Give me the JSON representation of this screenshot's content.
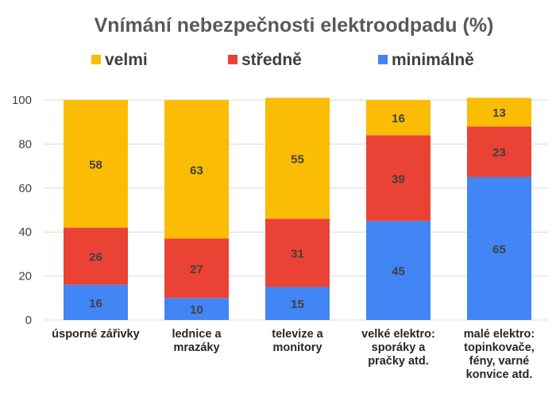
{
  "chart_data": {
    "type": "bar",
    "stacked": true,
    "title": "Vnímání nebezpečnosti elektroodpadu (%)",
    "xlabel": "",
    "ylabel": "",
    "ylim": [
      0,
      100
    ],
    "yticks": [
      "0",
      "20",
      "40",
      "60",
      "80",
      "100"
    ],
    "grid": true,
    "legend_position": "top",
    "categories": [
      [
        "úsporné zářivky"
      ],
      [
        "lednice a",
        "mrazáky"
      ],
      [
        "televize a",
        "monitory"
      ],
      [
        "velké elektro:",
        "sporáky a",
        "pračky atd."
      ],
      [
        "malé elektro:",
        "topinkovače,",
        "fény, varné",
        "konvice atd."
      ]
    ],
    "series": [
      {
        "name": "minimálně",
        "color": "#4285F4",
        "values": [
          16,
          10,
          15,
          45,
          65
        ]
      },
      {
        "name": "středně",
        "color": "#EA4335",
        "values": [
          26,
          27,
          31,
          39,
          23
        ]
      },
      {
        "name": "velmi",
        "color": "#FBBC04",
        "values": [
          58,
          63,
          55,
          16,
          13
        ]
      }
    ],
    "legend_order": [
      "velmi",
      "středně",
      "minimálně"
    ]
  }
}
